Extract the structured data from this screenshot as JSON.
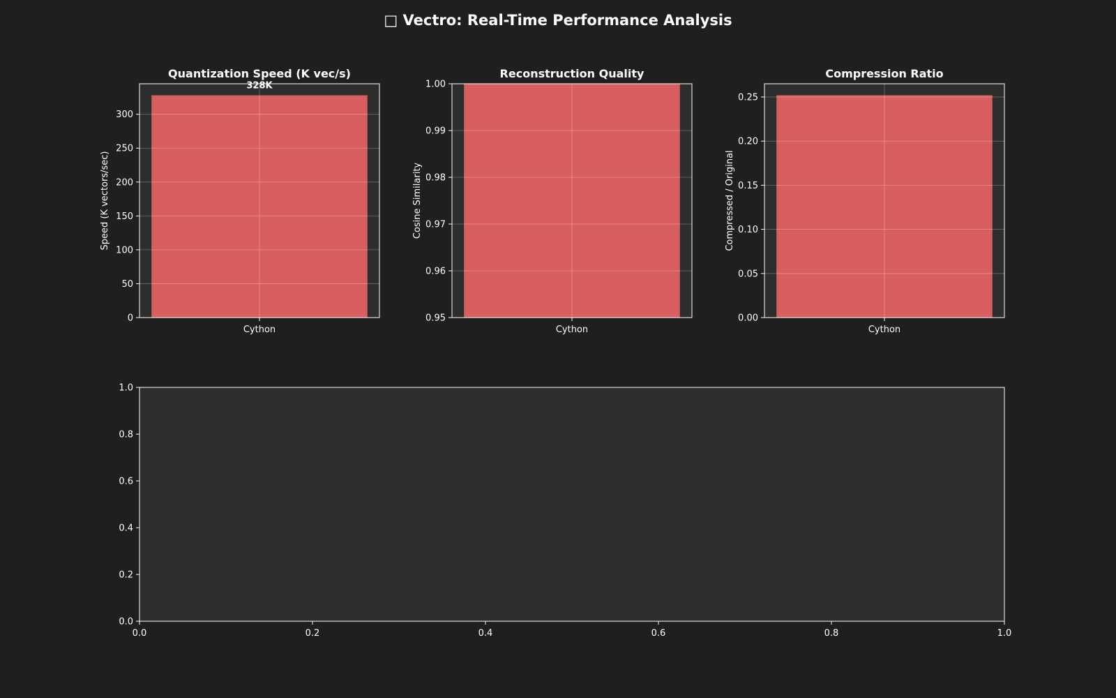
{
  "figure": {
    "title_icon": "rocket-icon",
    "title": "□ Vectro: Real-Time Performance Analysis",
    "background": "#1f1f1f",
    "axes_background": "#2d2d2d",
    "bar_color": "#d75f5f"
  },
  "chart_data": [
    {
      "type": "bar",
      "title": "Quantization Speed (K vec/s)",
      "xlabel": "",
      "ylabel": "Speed (K vectors/sec)",
      "categories": [
        "Cython"
      ],
      "values": [
        328
      ],
      "data_labels": [
        "328K"
      ],
      "ylim": [
        0,
        345
      ],
      "yticks": [
        0,
        50,
        100,
        150,
        200,
        250,
        300
      ],
      "grid": true
    },
    {
      "type": "bar",
      "title": "Reconstruction Quality",
      "xlabel": "",
      "ylabel": "Cosine Similarity",
      "categories": [
        "Cython"
      ],
      "values": [
        1.0
      ],
      "data_labels": [],
      "ylim": [
        0.95,
        1.0
      ],
      "yticks": [
        0.95,
        0.96,
        0.97,
        0.98,
        0.99,
        1.0
      ],
      "grid": true
    },
    {
      "type": "bar",
      "title": "Compression Ratio",
      "xlabel": "",
      "ylabel": "Compressed / Original",
      "categories": [
        "Cython"
      ],
      "values": [
        0.252
      ],
      "data_labels": [],
      "ylim": [
        0,
        0.265
      ],
      "yticks": [
        0.0,
        0.05,
        0.1,
        0.15,
        0.2,
        0.25
      ],
      "grid": true
    },
    {
      "type": "line",
      "title": "",
      "xlabel": "",
      "ylabel": "",
      "series": [],
      "xlim": [
        0,
        1
      ],
      "ylim": [
        0,
        1
      ],
      "xticks": [
        0.0,
        0.2,
        0.4,
        0.6,
        0.8,
        1.0
      ],
      "yticks": [
        0.0,
        0.2,
        0.4,
        0.6,
        0.8,
        1.0
      ],
      "grid": false
    }
  ]
}
